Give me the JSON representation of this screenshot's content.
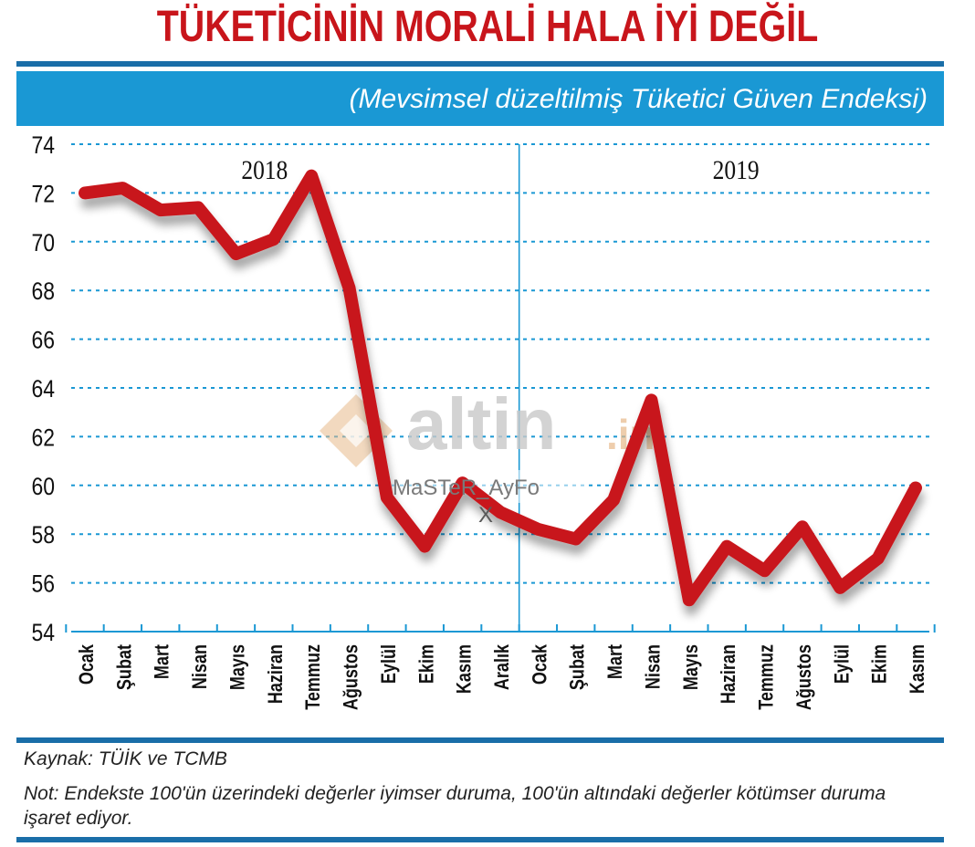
{
  "header": {
    "title": "TÜKETİCİNİN MORALİ HALA İYİ DEĞİL",
    "subtitle": "(Mevsimsel düzeltilmiş Tüketici Güven Endeksi)"
  },
  "footer": {
    "source": "Kaynak: TÜİK ve TCMB",
    "note": "Not: Endekste 100'ün üzerindeki değerler iyimser duruma, 100'ün altındaki değerler kötümser duruma işaret ediyor."
  },
  "watermark": {
    "brand": "altin",
    "suffix": ".in",
    "tag": "MaSTeR_AyFo",
    "mark": "X"
  },
  "colors": {
    "title": "#c8151b",
    "band": "#1a98d4",
    "rule": "#1a6ea8",
    "line": "#c8151b",
    "grid": "#1a98d4"
  },
  "chart_data": {
    "type": "line",
    "title": "TÜKETİCİNİN MORALİ HALA İYİ DEĞİL",
    "subtitle": "(Mevsimsel düzeltilmiş Tüketici Güven Endeksi)",
    "ylim": [
      54,
      74
    ],
    "yticks": [
      54,
      56,
      58,
      60,
      62,
      64,
      66,
      68,
      70,
      72,
      74
    ],
    "grid": "horizontal dashed",
    "year_labels": [
      "2018",
      "2019"
    ],
    "categories": [
      "Ocak",
      "Şubat",
      "Mart",
      "Nisan",
      "Mayıs",
      "Haziran",
      "Temmuz",
      "Ağustos",
      "Eylül",
      "Ekim",
      "Kasım",
      "Aralık",
      "Ocak",
      "Şubat",
      "Mart",
      "Nisan",
      "Mayıs",
      "Haziran",
      "Temmuz",
      "Ağustos",
      "Eylül",
      "Ekim",
      "Kasım"
    ],
    "series": [
      {
        "values": [
          72.0,
          72.2,
          71.3,
          71.4,
          69.5,
          70.1,
          72.7,
          68.1,
          59.5,
          57.5,
          60.1,
          58.9,
          58.2,
          57.8,
          59.4,
          63.5,
          55.3,
          57.5,
          56.5,
          58.3,
          55.8,
          57.0,
          59.9
        ]
      }
    ]
  }
}
